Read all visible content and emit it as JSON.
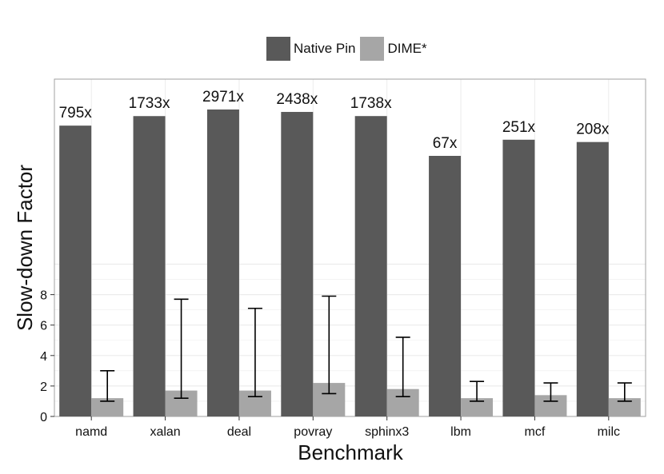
{
  "legend": {
    "items": [
      {
        "label": "Native Pin",
        "color": "#595959"
      },
      {
        "label": "DIME*",
        "color": "#a6a6a6"
      }
    ]
  },
  "colors": {
    "native": "#595959",
    "dime": "#a6a6a6",
    "panel_border": "#a0a0a0",
    "grid": "#ececec"
  },
  "chart_data": {
    "type": "bar",
    "xlabel": "Benchmark",
    "ylabel": "Slow-down Factor",
    "categories": [
      "namd",
      "xalan",
      "deal",
      "povray",
      "sphinx3",
      "lbm",
      "mcf",
      "milc"
    ],
    "series": [
      {
        "name": "Native Pin",
        "values": [
          795,
          1733,
          2971,
          2438,
          1738,
          67,
          251,
          208
        ],
        "value_labels": [
          "795x",
          "1733x",
          "2971x",
          "2438x",
          "1738x",
          "67x",
          "251x",
          "208x"
        ]
      },
      {
        "name": "DIME*",
        "values": [
          1.2,
          1.7,
          1.7,
          2.2,
          1.8,
          1.2,
          1.4,
          1.2
        ],
        "error_low": [
          1.0,
          1.2,
          1.3,
          1.5,
          1.3,
          1.0,
          1.0,
          1.0
        ],
        "error_high": [
          3.0,
          7.7,
          7.1,
          7.9,
          5.2,
          2.3,
          2.2,
          2.2
        ]
      }
    ],
    "y_ticks": [
      0,
      2,
      4,
      6,
      8
    ],
    "ylim": [
      0,
      8
    ],
    "y_scale": "broken linear; values above the break are drawn truncated and labeled",
    "grid": true,
    "legend_position": "top"
  }
}
